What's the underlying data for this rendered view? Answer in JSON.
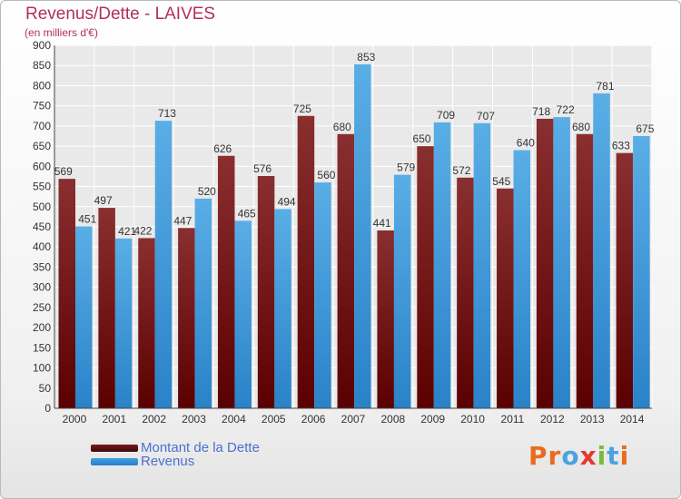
{
  "title": "Revenus/Dette - LAIVES",
  "subtitle": "(en milliers d'€)",
  "logo": {
    "text": "Proxiti",
    "letters": [
      {
        "char": "P",
        "color": "#e96c1c"
      },
      {
        "char": "r",
        "color": "#e96c1c"
      },
      {
        "char": "o",
        "color": "#4aa3df"
      },
      {
        "char": "x",
        "color": "#e23a2c"
      },
      {
        "char": "i",
        "color": "#7dba3c"
      },
      {
        "char": "t",
        "color": "#4aa3df"
      },
      {
        "char": "i",
        "color": "#e96c1c"
      }
    ]
  },
  "legend": [
    {
      "label": "Montant de la Dette",
      "color": "#7a1a1a"
    },
    {
      "label": "Revenus",
      "color": "#3d9de0"
    }
  ],
  "chart_data": {
    "type": "bar",
    "title": "Revenus/Dette - LAIVES",
    "subtitle": "(en milliers d'€)",
    "categories": [
      "2000",
      "2001",
      "2002",
      "2003",
      "2004",
      "2005",
      "2006",
      "2007",
      "2008",
      "2009",
      "2010",
      "2011",
      "2012",
      "2013",
      "2014"
    ],
    "series": [
      {
        "name": "Montant de la Dette",
        "color": "#7a1a1a",
        "values": [
          569,
          497,
          422,
          447,
          626,
          576,
          725,
          680,
          441,
          650,
          572,
          545,
          718,
          680,
          633
        ]
      },
      {
        "name": "Revenus",
        "color": "#3d9de0",
        "values": [
          451,
          421,
          713,
          520,
          465,
          494,
          560,
          853,
          579,
          709,
          707,
          640,
          722,
          781,
          675
        ]
      }
    ],
    "ylim": [
      0,
      900
    ],
    "yticks": [
      0,
      50,
      100,
      150,
      200,
      250,
      300,
      350,
      400,
      450,
      500,
      550,
      600,
      650,
      700,
      750,
      800,
      850,
      900
    ],
    "grid": true,
    "legend_position": "bottom-left"
  }
}
